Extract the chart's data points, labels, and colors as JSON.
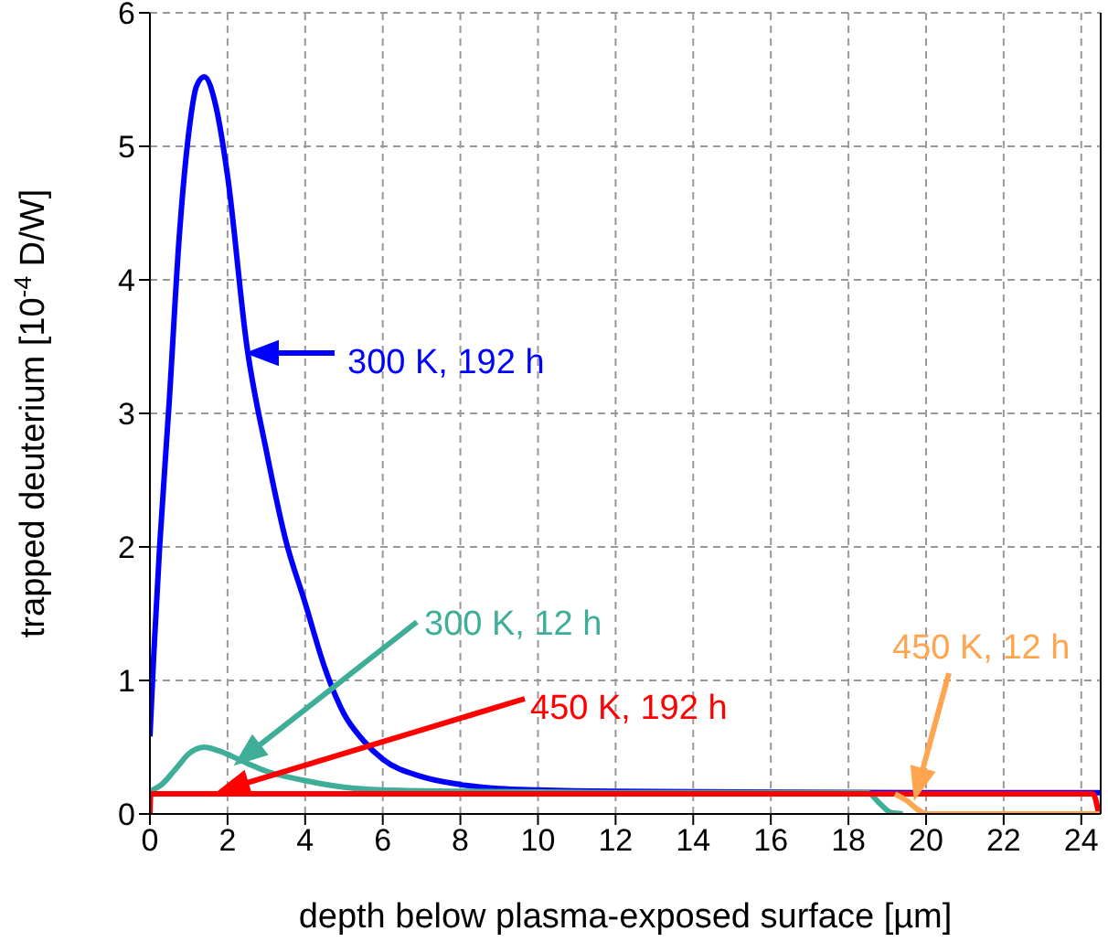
{
  "chart_data": {
    "type": "line",
    "xlabel": "depth below plasma-exposed surface [µm]",
    "ylabel": "trapped deuterium [10$^{-4}$ D/W]",
    "xlim": [
      0,
      24.5
    ],
    "xticks": [
      0,
      2,
      4,
      6,
      8,
      10,
      12,
      14,
      16,
      18,
      20,
      22,
      24
    ],
    "ylim": [
      0,
      6
    ],
    "yticks": [
      0,
      1,
      2,
      3,
      4,
      5,
      6
    ],
    "grid": true,
    "line_style": "solid",
    "marker": "none",
    "series": [
      {
        "color": "#0000ff",
        "x": [
          0,
          0.1,
          0.25,
          0.5,
          0.75,
          1,
          1.2,
          1.4,
          1.7,
          2,
          2.5,
          3,
          3.5,
          4,
          4.5,
          5,
          5.5,
          6,
          7,
          8,
          9,
          10,
          12,
          20,
          24.5
        ],
        "values": [
          0.58,
          1.2,
          2.0,
          3.1,
          4.3,
          5.1,
          5.45,
          5.52,
          5.3,
          4.78,
          3.5,
          2.72,
          2.05,
          1.58,
          1.1,
          0.75,
          0.55,
          0.41,
          0.28,
          0.22,
          0.19,
          0.18,
          0.17,
          0.16,
          0.16
        ]
      },
      {
        "color": "#3fae98",
        "x": [
          0,
          0.3,
          0.7,
          1,
          1.4,
          1.8,
          2.5,
          3,
          4,
          5,
          6,
          8,
          12,
          18.5,
          18.8,
          19.1,
          19.4
        ],
        "values": [
          0.17,
          0.22,
          0.35,
          0.45,
          0.5,
          0.47,
          0.38,
          0.32,
          0.25,
          0.2,
          0.18,
          0.17,
          0.16,
          0.16,
          0.08,
          0.01,
          0
        ]
      },
      {
        "color": "#ff0000",
        "x": [
          0,
          0.02,
          5,
          10,
          15,
          20,
          24.3,
          24.45
        ],
        "values": [
          0,
          0.15,
          0.15,
          0.15,
          0.15,
          0.15,
          0.15,
          0
        ]
      },
      {
        "color": "#ffa54f",
        "x": [
          19.2,
          19.5,
          19.8,
          20,
          22,
          24.5
        ],
        "values": [
          0.15,
          0.1,
          0.03,
          0,
          0,
          0
        ]
      }
    ],
    "annotations": [
      "300 K, 192 h",
      "300 K, 12 h",
      "450 K, 192 h",
      "450 K, 12 h"
    ]
  }
}
